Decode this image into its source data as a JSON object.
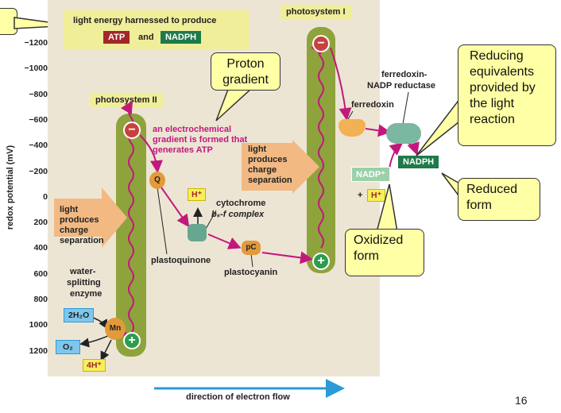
{
  "axis": {
    "ylabel": "redox potential (mV)",
    "ticks": [
      "−1200",
      "−1000",
      "−800",
      "−600",
      "−400",
      "−200",
      "0",
      "200",
      "400",
      "600",
      "800",
      "1000",
      "1200"
    ],
    "xlabel": "direction of electron flow"
  },
  "header_box": {
    "text": "light energy harnessed to produce",
    "atp": "ATP",
    "and": "and",
    "nadph": "NADPH"
  },
  "photosystems": {
    "ps1": "photosystem I",
    "ps2": "photosystem II"
  },
  "electrochemical": "an electrochemical gradient is formed that generates ATP",
  "charge_sep_left": "light produces charge separation",
  "charge_sep_right": "light produces charge separation",
  "components": {
    "q": "Q",
    "plastoquinone": "plastoquinone",
    "h_plus": "H⁺",
    "cytochrome_line1": "cytochrome",
    "cytochrome_line2": "b₆-f complex",
    "pc": "pC",
    "plastocyanin": "plastocyanin",
    "ferredoxin": "ferredoxin",
    "reductase_line1": "ferredoxin-",
    "reductase_line2": "NADP reductase",
    "nadp_plus": "NADP⁺",
    "plus_sign": "+",
    "h_plus_2": "H⁺",
    "nadph": "NADPH",
    "water_enzyme_1": "water-",
    "water_enzyme_2": "splitting",
    "water_enzyme_3": "enzyme",
    "mn": "Mn",
    "h2o": "2H₂O",
    "o2": "O₂",
    "h4": "4H⁺",
    "minus": "−",
    "plus": "+"
  },
  "callouts": {
    "proton": "Proton gradient",
    "reducing": "Reducing equivalents provided by the light reaction",
    "reduced": "Reduced form",
    "oxidized": "Oxidized form"
  },
  "slide_number": "16",
  "colors": {
    "panel": "#ede5d4",
    "pill": "#8ea33c",
    "magenta": "#c2187c",
    "atp": "#a3262a",
    "nadph": "#1e7a4a",
    "callout": "#ffffa5",
    "axis_arrow": "#2a9bd8"
  }
}
